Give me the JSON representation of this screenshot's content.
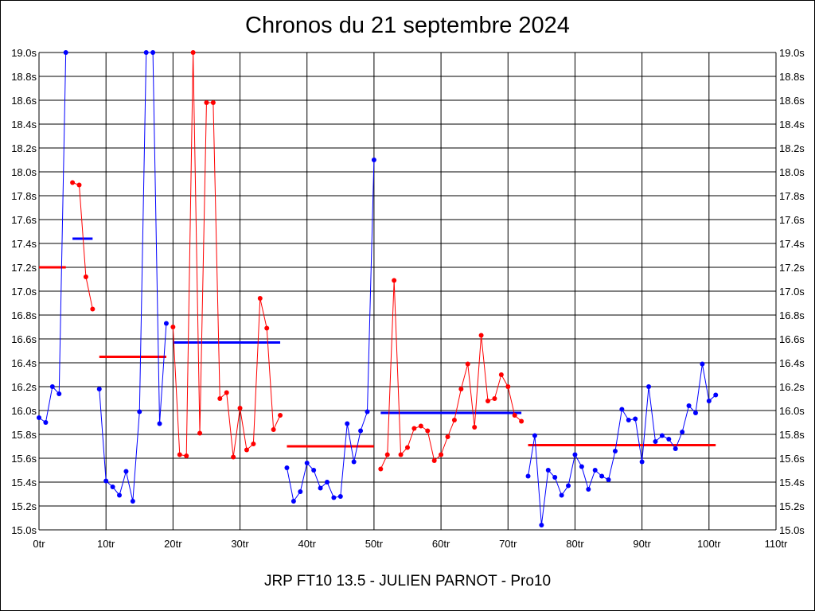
{
  "chart_data": {
    "type": "line",
    "title": "Chronos du 21 septembre 2024",
    "footer": "JRP FT10 13.5 - JULIEN PARNOT - Pro10",
    "xlabel": "",
    "ylabel": "",
    "xlim": [
      0,
      110
    ],
    "ylim": [
      15.0,
      19.0
    ],
    "grid": true,
    "x_ticks": [
      "0tr",
      "10tr",
      "20tr",
      "30tr",
      "40tr",
      "50tr",
      "60tr",
      "70tr",
      "80tr",
      "90tr",
      "100tr",
      "110tr"
    ],
    "y_ticks": [
      "15.0s",
      "15.2s",
      "15.4s",
      "15.6s",
      "15.8s",
      "16.0s",
      "16.2s",
      "16.4s",
      "16.6s",
      "16.8s",
      "17.0s",
      "17.2s",
      "17.4s",
      "17.6s",
      "17.8s",
      "18.0s",
      "18.2s",
      "18.4s",
      "18.6s",
      "18.8s",
      "19.0s"
    ],
    "colors": {
      "blue": "#0000ff",
      "red": "#ff0000",
      "grid": "#000000"
    },
    "series": [
      {
        "color": "blue",
        "x": [
          0,
          1,
          2,
          3,
          4
        ],
        "y": [
          15.94,
          15.9,
          16.2,
          16.14,
          19.0
        ]
      },
      {
        "color": "red",
        "x": [
          5,
          6,
          7,
          8
        ],
        "y": [
          17.91,
          17.89,
          17.12,
          16.85
        ]
      },
      {
        "color": "blue",
        "x": [
          9,
          10,
          11,
          12,
          13,
          14,
          15,
          16,
          17,
          18,
          19
        ],
        "y": [
          16.18,
          15.41,
          15.36,
          15.29,
          15.49,
          15.24,
          15.99,
          19.0,
          19.0,
          15.89,
          16.73
        ]
      },
      {
        "color": "red",
        "x": [
          20,
          21,
          22,
          23,
          24,
          25,
          26,
          27,
          28,
          29,
          30,
          31,
          32,
          33,
          34,
          35,
          36
        ],
        "y": [
          16.7,
          15.63,
          15.62,
          19.0,
          15.81,
          18.58,
          18.58,
          16.1,
          16.15,
          15.61,
          16.02,
          15.67,
          15.72,
          16.94,
          16.69,
          15.84,
          15.96
        ]
      },
      {
        "color": "blue",
        "x": [
          37,
          38,
          39,
          40,
          41,
          42,
          43,
          44,
          45,
          46,
          47,
          48,
          49,
          50
        ],
        "y": [
          15.52,
          15.24,
          15.32,
          15.56,
          15.5,
          15.35,
          15.4,
          15.27,
          15.28,
          15.89,
          15.57,
          15.83,
          15.99,
          18.1
        ]
      },
      {
        "color": "red",
        "x": [
          51,
          52,
          53,
          54,
          55,
          56,
          57,
          58,
          59,
          60,
          61,
          62,
          63,
          64,
          65,
          66,
          67,
          68,
          69,
          70,
          71,
          72
        ],
        "y": [
          15.51,
          15.63,
          17.09,
          15.63,
          15.69,
          15.85,
          15.87,
          15.83,
          15.58,
          15.63,
          15.78,
          15.92,
          16.18,
          16.39,
          15.86,
          16.63,
          16.08,
          16.1,
          16.3,
          16.2,
          15.96,
          15.91
        ]
      },
      {
        "color": "blue",
        "x": [
          73,
          74,
          75,
          76,
          77,
          78,
          79,
          80,
          81,
          82,
          83,
          84,
          85,
          86,
          87,
          88,
          89,
          90,
          91,
          92,
          93,
          94,
          95,
          96,
          97,
          98,
          99,
          100,
          101
        ],
        "y": [
          15.45,
          15.79,
          15.04,
          15.5,
          15.44,
          15.29,
          15.37,
          15.63,
          15.53,
          15.34,
          15.5,
          15.45,
          15.42,
          15.66,
          16.01,
          15.92,
          15.93,
          15.57,
          16.2,
          15.74,
          15.79,
          15.76,
          15.68,
          15.82,
          16.04,
          15.98,
          16.39,
          16.08,
          16.13
        ]
      }
    ],
    "averages": [
      {
        "color": "red",
        "x": [
          0,
          4
        ],
        "y": 17.2
      },
      {
        "color": "blue",
        "x": [
          5,
          8
        ],
        "y": 17.44
      },
      {
        "color": "red",
        "x": [
          9,
          19
        ],
        "y": 16.45
      },
      {
        "color": "blue",
        "x": [
          20,
          36
        ],
        "y": 16.57
      },
      {
        "color": "red",
        "x": [
          37,
          50
        ],
        "y": 15.7
      },
      {
        "color": "blue",
        "x": [
          51,
          72
        ],
        "y": 15.98
      },
      {
        "color": "red",
        "x": [
          73,
          101
        ],
        "y": 15.71
      }
    ]
  }
}
